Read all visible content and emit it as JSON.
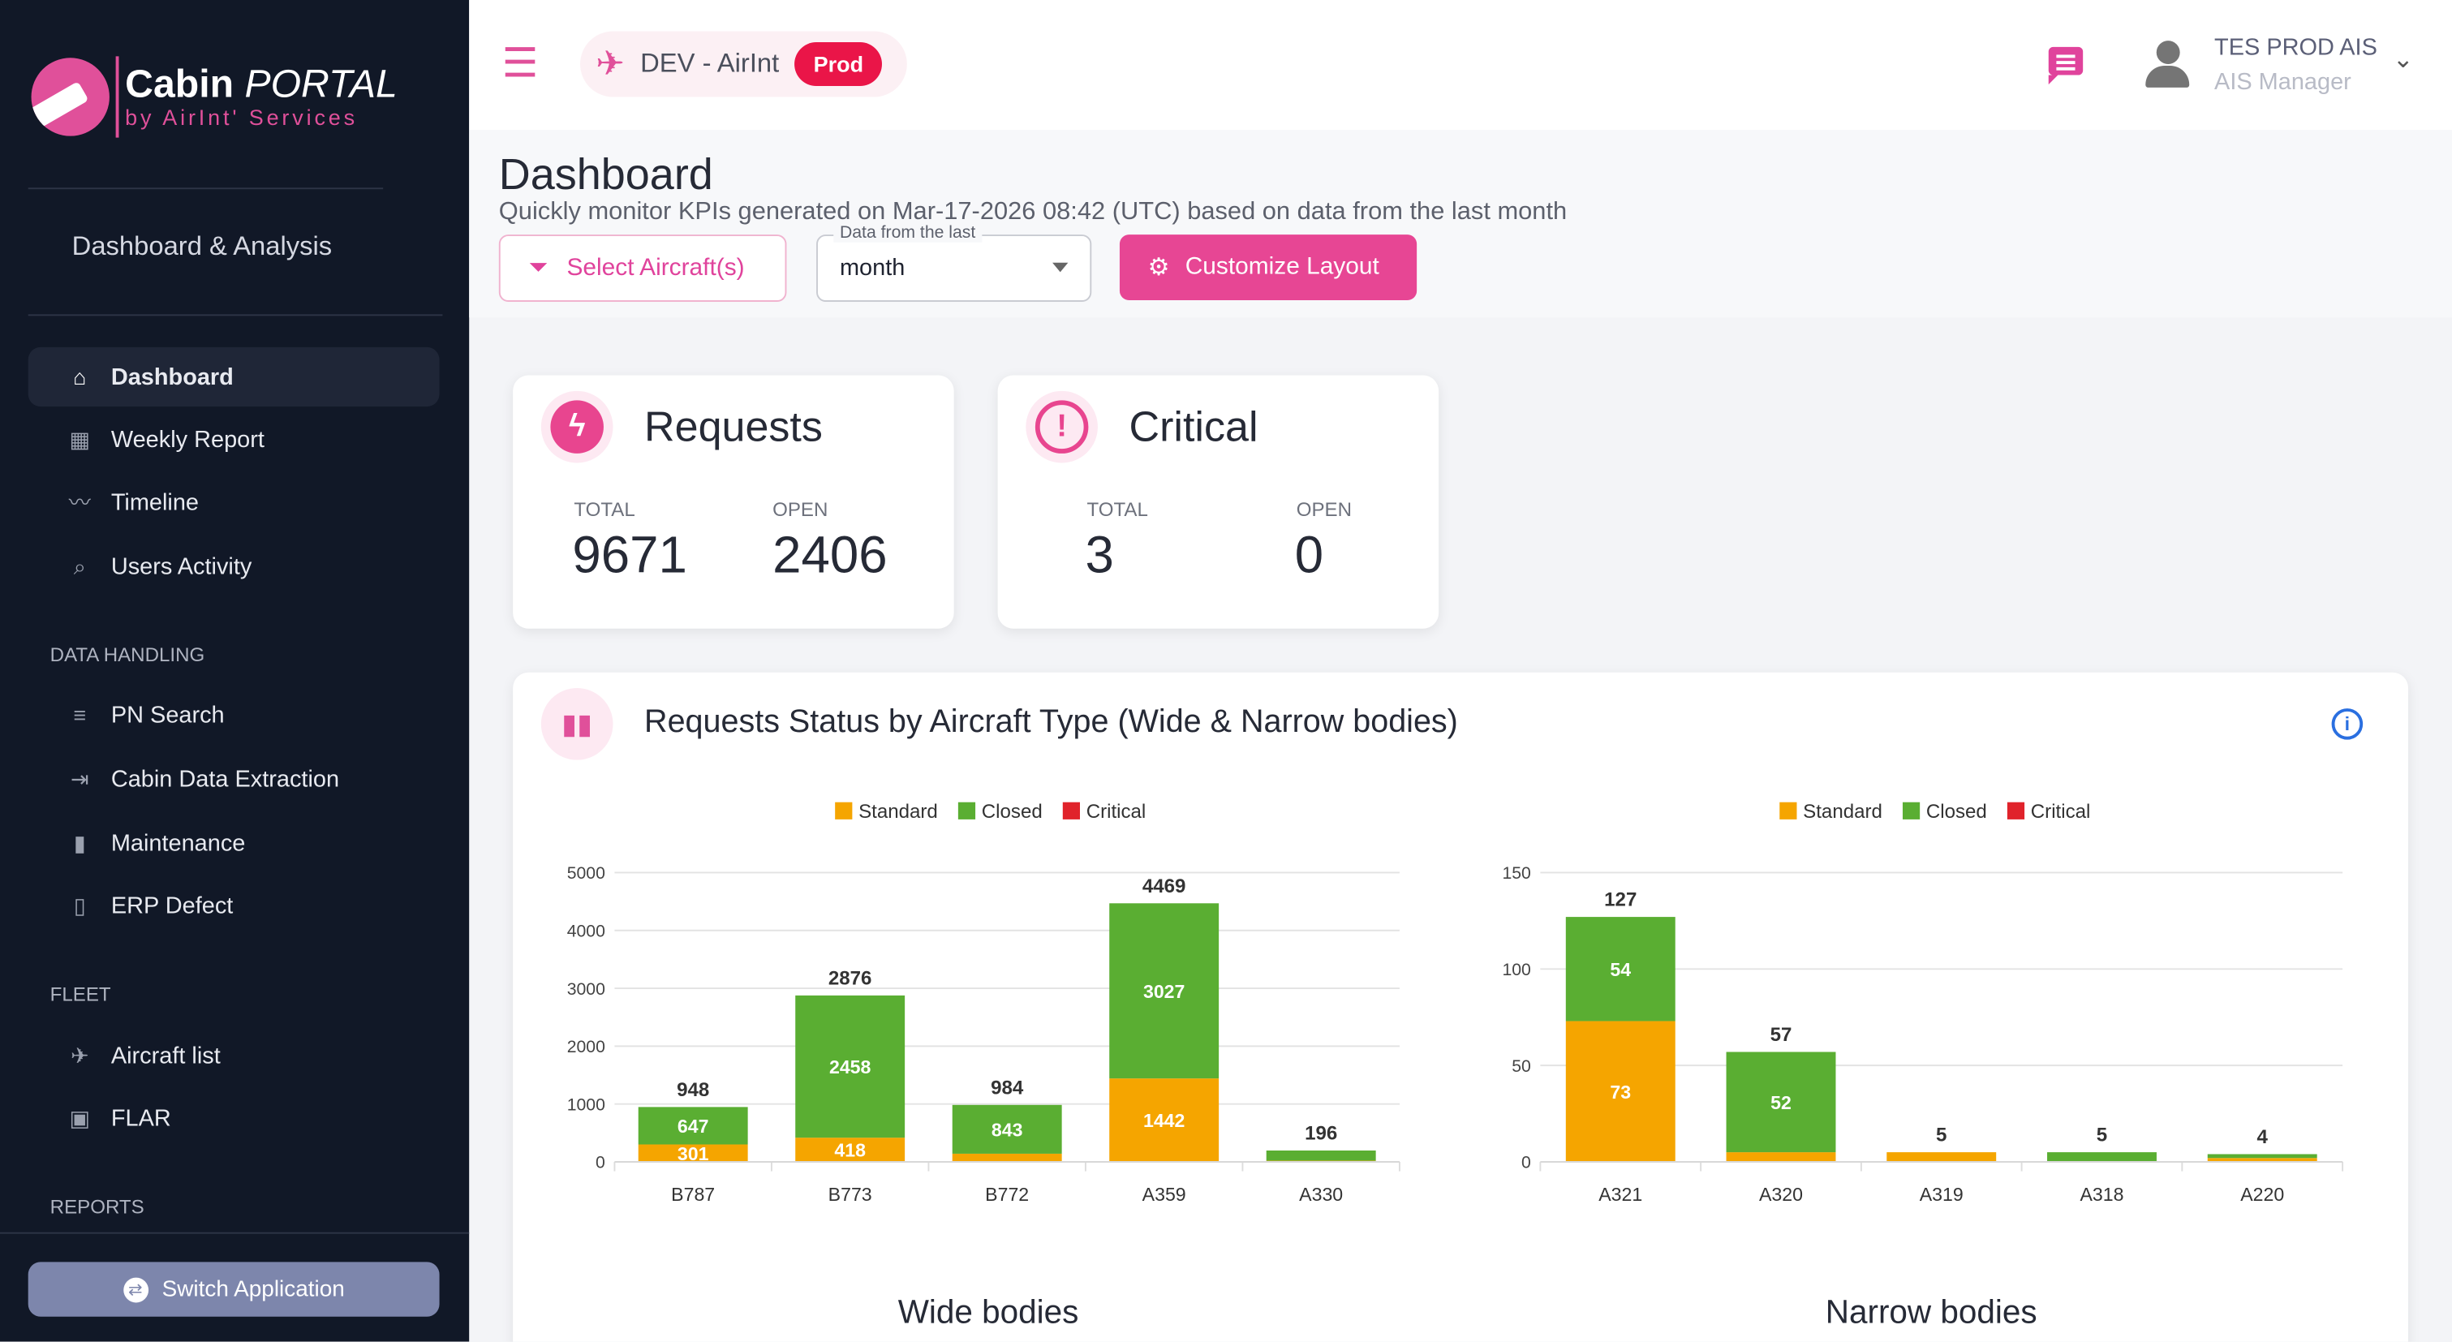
{
  "sidebar": {
    "logo": {
      "brand_bold": "Cabin",
      "brand_light": "PORTAL",
      "tagline": "by AirInt' Services"
    },
    "section_title": "Dashboard & Analysis",
    "items": [
      {
        "label": "Dashboard",
        "icon": "home-icon",
        "active": true
      },
      {
        "label": "Weekly Report",
        "icon": "calendar-icon"
      },
      {
        "label": "Timeline",
        "icon": "trend-icon"
      },
      {
        "label": "Users Activity",
        "icon": "activity-search-icon"
      }
    ],
    "groups": [
      {
        "title": "DATA HANDLING",
        "items": [
          {
            "label": "PN Search",
            "icon": "list-search-icon"
          },
          {
            "label": "Cabin Data Extraction",
            "icon": "export-icon"
          },
          {
            "label": "Maintenance",
            "icon": "bar-chart-icon"
          },
          {
            "label": "ERP Defect",
            "icon": "document-icon"
          }
        ]
      },
      {
        "title": "FLEET",
        "items": [
          {
            "label": "Aircraft list",
            "icon": "airplane-icon"
          },
          {
            "label": "FLAR",
            "icon": "frame-icon"
          }
        ]
      },
      {
        "title": "REPORTS",
        "items": []
      }
    ],
    "switch_label": "Switch Application"
  },
  "header": {
    "env_name": "DEV - AirInt",
    "env_badge": "Prod",
    "user_name": "TES PROD AIS",
    "user_role": "AIS Manager"
  },
  "page": {
    "title": "Dashboard",
    "subtitle": "Quickly monitor KPIs generated on Mar-17-2026 08:42 (UTC) based on data from the last month",
    "select_aircraft_label": "Select Aircraft(s)",
    "period_label": "Data from the last",
    "period_value": "month",
    "customize_label": "Customize Layout"
  },
  "kpis": [
    {
      "title": "Requests",
      "total_label": "TOTAL",
      "total": "9671",
      "open_label": "OPEN",
      "open": "2406"
    },
    {
      "title": "Critical",
      "total_label": "TOTAL",
      "total": "3",
      "open_label": "OPEN",
      "open": "0"
    }
  ],
  "panel": {
    "title": "Requests Status by Aircraft Type (Wide & Narrow bodies)"
  },
  "colors": {
    "Standard": "#f5a500",
    "Closed": "#5aae32",
    "Critical": "#e0232b",
    "accent": "#e0509a"
  },
  "chart_data": [
    {
      "type": "bar",
      "stacked": true,
      "title": "Wide bodies",
      "legend_position": "top",
      "legend": [
        "Standard",
        "Closed",
        "Critical"
      ],
      "categories": [
        "B787",
        "B773",
        "B772",
        "A359",
        "A330"
      ],
      "series": [
        {
          "name": "Standard",
          "values": [
            301,
            418,
            141,
            1442,
            20
          ]
        },
        {
          "name": "Closed",
          "values": [
            647,
            2458,
            843,
            3027,
            176
          ]
        },
        {
          "name": "Critical",
          "values": [
            0,
            0,
            0,
            0,
            0
          ]
        }
      ],
      "totals": [
        948,
        2876,
        984,
        4469,
        196
      ],
      "segment_labels": {
        "Standard": [
          "301",
          "418",
          "",
          "1442",
          ""
        ],
        "Closed": [
          "647",
          "2458",
          "843",
          "3027",
          ""
        ]
      },
      "yticks": [
        "0",
        "1000",
        "2000",
        "3000",
        "4000",
        "5000"
      ],
      "ylim": [
        0,
        5000
      ],
      "grid": true
    },
    {
      "type": "bar",
      "stacked": true,
      "title": "Narrow bodies",
      "legend_position": "top",
      "legend": [
        "Standard",
        "Closed",
        "Critical"
      ],
      "categories": [
        "A321",
        "A320",
        "A319",
        "A318",
        "A220"
      ],
      "series": [
        {
          "name": "Standard",
          "values": [
            73,
            5,
            5,
            0,
            2
          ]
        },
        {
          "name": "Closed",
          "values": [
            54,
            52,
            0,
            5,
            2
          ]
        },
        {
          "name": "Critical",
          "values": [
            0,
            0,
            0,
            0,
            0
          ]
        }
      ],
      "totals": [
        127,
        57,
        5,
        5,
        4
      ],
      "segment_labels": {
        "Standard": [
          "73",
          "",
          "",
          "",
          ""
        ],
        "Closed": [
          "54",
          "52",
          "",
          "",
          ""
        ]
      },
      "yticks": [
        "0",
        "50",
        "100",
        "150"
      ],
      "ylim": [
        0,
        150
      ],
      "grid": true
    }
  ]
}
